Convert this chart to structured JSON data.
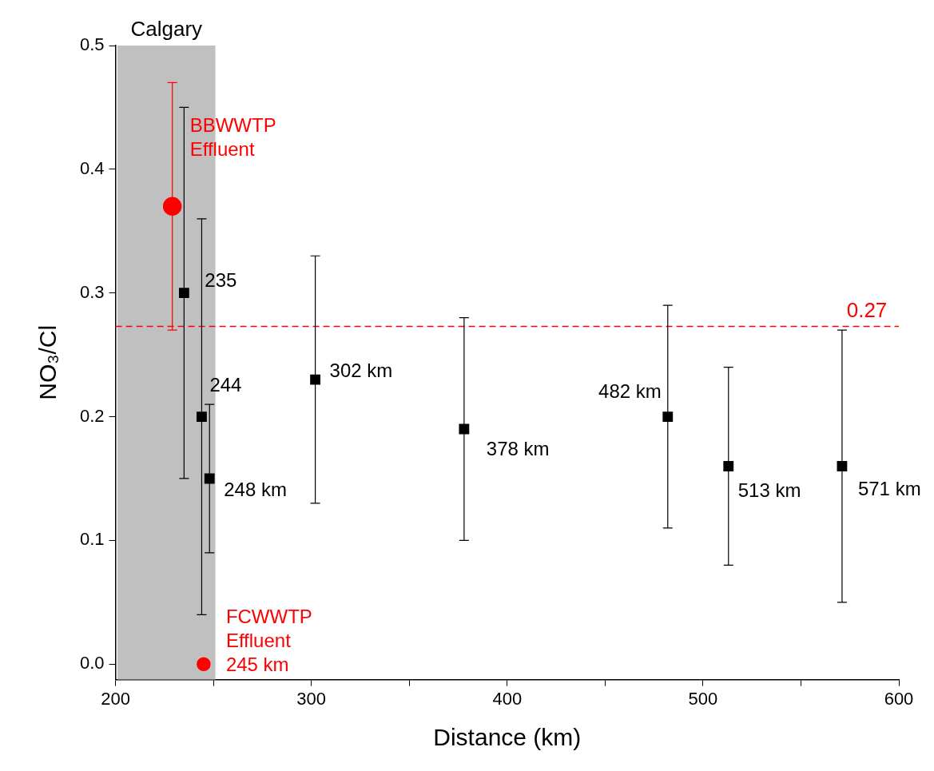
{
  "chart_data": {
    "type": "scatter",
    "xlabel": "Distance (km)",
    "ylabel": "NO₃/Cl",
    "xlim": [
      200,
      600
    ],
    "xticks": [
      200,
      {
        "value": 250,
        "label": null
      },
      300,
      {
        "value": 350,
        "label": null
      },
      400,
      {
        "value": 450,
        "label": null
      },
      500,
      {
        "value": 550,
        "label": null
      },
      600
    ],
    "ylim": [
      -0.0125,
      0.5
    ],
    "yticks": [
      {
        "value": 0,
        "label": "0.0"
      },
      0.1,
      0.2,
      0.3,
      0.4,
      0.5
    ],
    "grid": false,
    "legend": false,
    "series": [
      {
        "type": "scatter",
        "color": "#000000",
        "marker": "square",
        "x": [
          235,
          244,
          248,
          302,
          378,
          482,
          513,
          571
        ],
        "values": [
          0.3,
          0.2,
          0.15,
          0.23,
          0.19,
          0.2,
          0.16,
          0.16
        ],
        "errors": [
          [
            0.15,
            0.45
          ],
          [
            0.04,
            0.36
          ],
          [
            0.09,
            0.21
          ],
          [
            0.13,
            0.33
          ],
          [
            0.1,
            0.28
          ],
          [
            0.11,
            0.29
          ],
          [
            0.08,
            0.24
          ],
          [
            0.05,
            0.27
          ]
        ]
      },
      {
        "type": "scatter",
        "color": "#ff0000",
        "marker": "circle",
        "x": [
          229
        ],
        "values": [
          0.37
        ],
        "errors": [
          [
            0.27,
            0.47
          ]
        ]
      },
      {
        "type": "scatter",
        "color": "#ff0000",
        "marker": "circle",
        "x": [
          245
        ],
        "values": [
          0
        ]
      }
    ],
    "bands": [
      {
        "axis": "x",
        "from": 201,
        "to": 251,
        "label": "Calgary",
        "color": "#c0c0c0"
      }
    ],
    "ref_lines": [
      {
        "axis": "y",
        "value": 0.273,
        "label": "0.27",
        "color": "#ff0000",
        "line_style": "dashed"
      }
    ],
    "annotations": [
      {
        "text": "235",
        "x": 235,
        "y": 0.3
      },
      {
        "text": "244",
        "x": 244,
        "y": 0.2
      },
      {
        "text": "248 km",
        "x": 248,
        "y": 0.15
      },
      {
        "text": "302 km",
        "x": 302,
        "y": 0.23
      },
      {
        "text": "378 km",
        "x": 378,
        "y": 0.19
      },
      {
        "text": "482 km",
        "x": 482,
        "y": 0.2
      },
      {
        "text": "513 km",
        "x": 513,
        "y": 0.16
      },
      {
        "text": "571 km",
        "x": 571,
        "y": 0.16
      },
      {
        "text": "BBWWTP\nEffluent",
        "x": 229,
        "y": 0.37
      },
      {
        "text": "FCWWTP\nEffluent\n245 km",
        "x": 245,
        "y": 0
      }
    ]
  }
}
